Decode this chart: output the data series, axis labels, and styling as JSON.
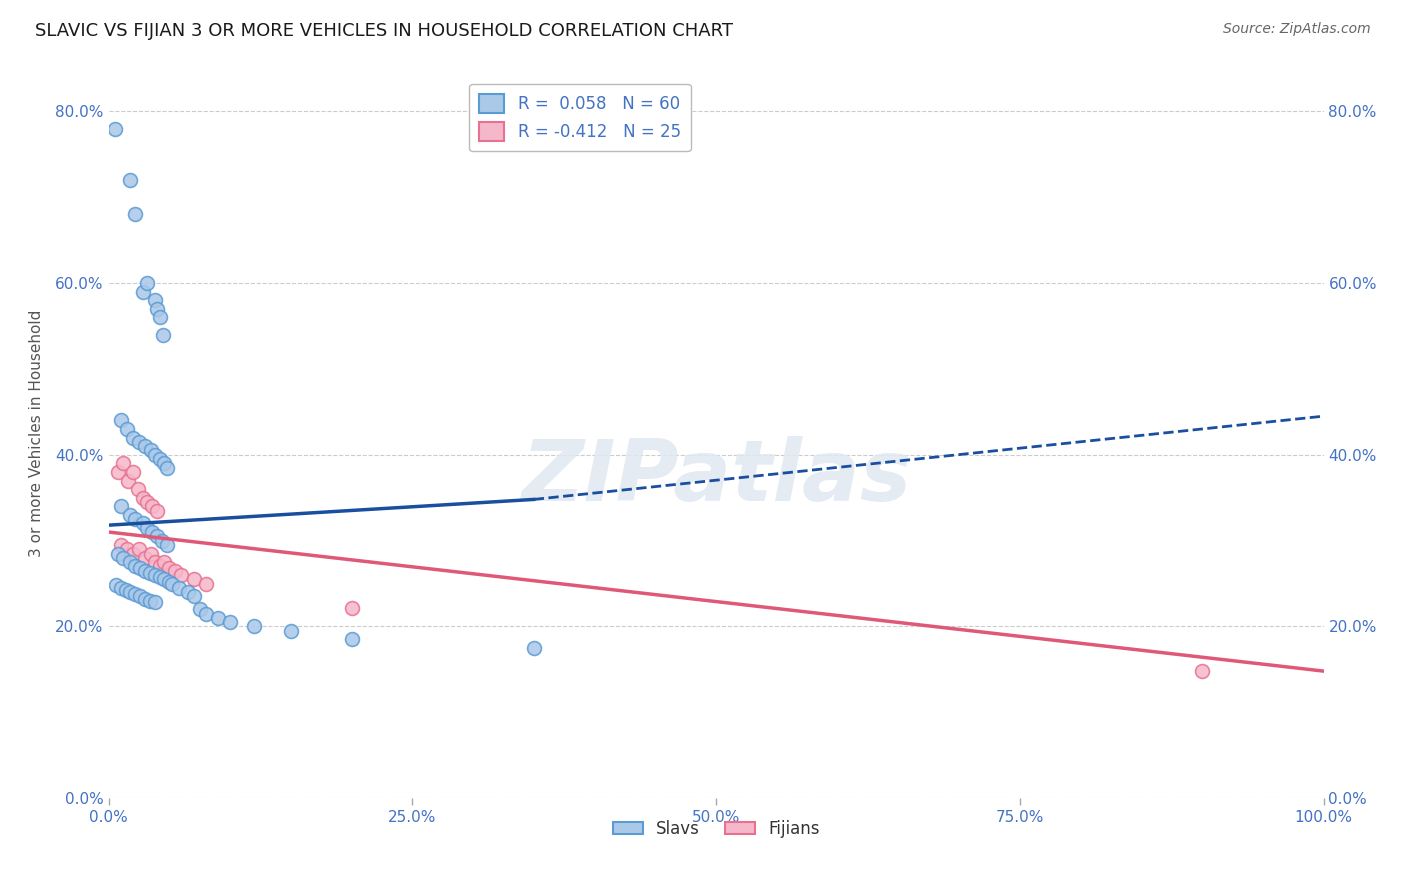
{
  "title": "SLAVIC VS FIJIAN 3 OR MORE VEHICLES IN HOUSEHOLD CORRELATION CHART",
  "source": "Source: ZipAtlas.com",
  "ylabel": "3 or more Vehicles in Household",
  "xlim": [
    0.0,
    1.0
  ],
  "ylim": [
    0.0,
    0.85
  ],
  "xticks": [
    0.0,
    0.25,
    0.5,
    0.75,
    1.0
  ],
  "xtick_labels": [
    "0.0%",
    "25.0%",
    "50.0%",
    "75.0%",
    "100.0%"
  ],
  "yticks": [
    0.0,
    0.2,
    0.4,
    0.6,
    0.8
  ],
  "ytick_labels": [
    "0.0%",
    "20.0%",
    "40.0%",
    "60.0%",
    "80.0%"
  ],
  "slavs_fill": "#aac8e8",
  "slavs_edge": "#5a9bd4",
  "fijians_fill": "#f5b8ca",
  "fijians_edge": "#e87090",
  "slavs_line_color": "#1a4fa0",
  "fijians_line_color": "#e05878",
  "slavs_R": 0.058,
  "slavs_N": 60,
  "fijians_R": -0.412,
  "fijians_N": 25,
  "slavs_x": [
    0.018,
    0.005,
    0.022,
    0.028,
    0.032,
    0.038,
    0.04,
    0.042,
    0.045,
    0.01,
    0.015,
    0.02,
    0.025,
    0.03,
    0.035,
    0.038,
    0.042,
    0.046,
    0.048,
    0.01,
    0.018,
    0.022,
    0.028,
    0.032,
    0.036,
    0.04,
    0.044,
    0.048,
    0.008,
    0.012,
    0.018,
    0.022,
    0.026,
    0.03,
    0.034,
    0.038,
    0.042,
    0.046,
    0.05,
    0.006,
    0.01,
    0.014,
    0.018,
    0.022,
    0.026,
    0.03,
    0.034,
    0.038,
    0.052,
    0.058,
    0.065,
    0.07,
    0.075,
    0.08,
    0.09,
    0.1,
    0.12,
    0.15,
    0.2,
    0.35
  ],
  "slavs_y": [
    0.72,
    0.78,
    0.68,
    0.59,
    0.6,
    0.58,
    0.57,
    0.56,
    0.54,
    0.44,
    0.43,
    0.42,
    0.415,
    0.41,
    0.405,
    0.4,
    0.395,
    0.39,
    0.385,
    0.34,
    0.33,
    0.325,
    0.32,
    0.315,
    0.31,
    0.305,
    0.3,
    0.295,
    0.285,
    0.28,
    0.275,
    0.27,
    0.268,
    0.265,
    0.262,
    0.26,
    0.258,
    0.255,
    0.252,
    0.248,
    0.245,
    0.242,
    0.24,
    0.238,
    0.235,
    0.232,
    0.23,
    0.228,
    0.25,
    0.245,
    0.24,
    0.235,
    0.22,
    0.215,
    0.21,
    0.205,
    0.2,
    0.195,
    0.185,
    0.175
  ],
  "fijians_x": [
    0.008,
    0.012,
    0.016,
    0.02,
    0.024,
    0.028,
    0.032,
    0.036,
    0.04,
    0.01,
    0.015,
    0.02,
    0.025,
    0.03,
    0.035,
    0.038,
    0.042,
    0.046,
    0.05,
    0.055,
    0.06,
    0.07,
    0.08,
    0.2,
    0.9
  ],
  "fijians_y": [
    0.38,
    0.39,
    0.37,
    0.38,
    0.36,
    0.35,
    0.345,
    0.34,
    0.335,
    0.295,
    0.29,
    0.285,
    0.29,
    0.28,
    0.285,
    0.275,
    0.27,
    0.275,
    0.268,
    0.265,
    0.26,
    0.255,
    0.25,
    0.222,
    0.148
  ],
  "slavs_trend_x0": 0.0,
  "slavs_trend_x1": 0.35,
  "slavs_trend_x2": 1.0,
  "slavs_trend_y0": 0.318,
  "slavs_trend_y1": 0.348,
  "slavs_trend_y2": 0.445,
  "fijians_trend_x0": 0.0,
  "fijians_trend_x1": 1.0,
  "fijians_trend_y0": 0.31,
  "fijians_trend_y1": 0.148,
  "watermark": "ZIPatlas",
  "bg_color": "#ffffff",
  "grid_color": "#cccccc",
  "title_color": "#1a1a1a",
  "tick_color": "#4472C4",
  "title_fontsize": 13,
  "label_fontsize": 11,
  "tick_fontsize": 11,
  "legend_fontsize": 12,
  "source_fontsize": 10,
  "marker_size": 100,
  "marker_lw": 1.2,
  "trend_lw": 2.5
}
